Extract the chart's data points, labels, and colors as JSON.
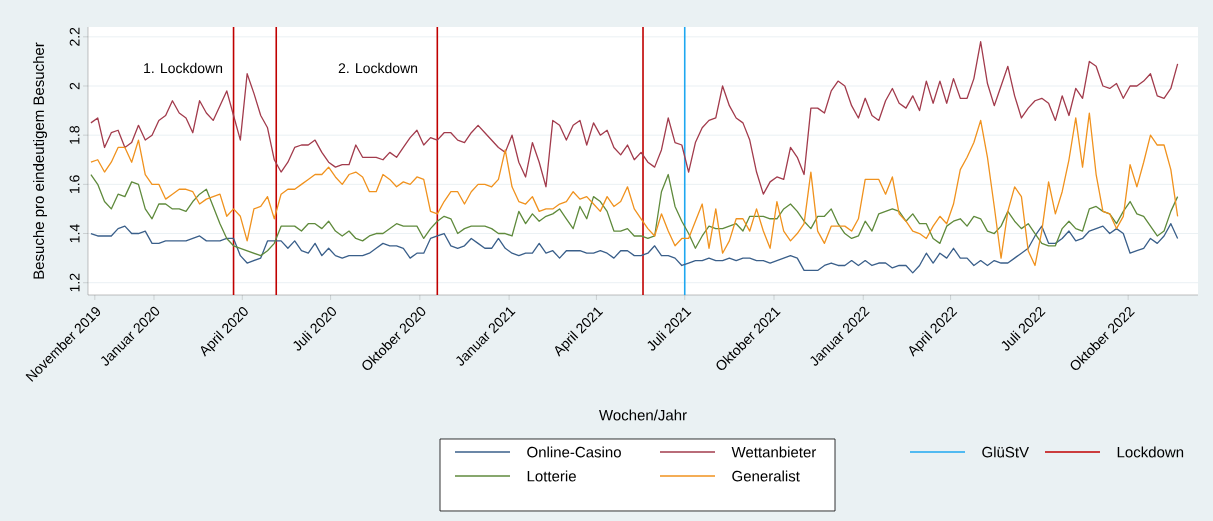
{
  "chart_data": {
    "type": "line",
    "xlabel": "Wochen/Jahr",
    "ylabel": "Besuche pro eindeutigem Besucher",
    "x": [
      "2019-10-28",
      "2019-11-04",
      "2019-11-11",
      "2019-11-18",
      "2019-11-25",
      "2019-12-02",
      "2019-12-09",
      "2019-12-16",
      "2019-12-23",
      "2019-12-30",
      "2020-01-06",
      "2020-01-13",
      "2020-01-20",
      "2020-01-27",
      "2020-02-03",
      "2020-02-10",
      "2020-02-17",
      "2020-02-24",
      "2020-03-02",
      "2020-03-09",
      "2020-03-16",
      "2020-03-23",
      "2020-03-30",
      "2020-04-06",
      "2020-04-13",
      "2020-04-20",
      "2020-04-27",
      "2020-05-04",
      "2020-05-11",
      "2020-05-18",
      "2020-05-25",
      "2020-06-01",
      "2020-06-08",
      "2020-06-15",
      "2020-06-22",
      "2020-06-29",
      "2020-07-06",
      "2020-07-13",
      "2020-07-20",
      "2020-07-27",
      "2020-08-03",
      "2020-08-10",
      "2020-08-17",
      "2020-08-24",
      "2020-08-31",
      "2020-09-07",
      "2020-09-14",
      "2020-09-21",
      "2020-09-28",
      "2020-10-05",
      "2020-10-12",
      "2020-10-19",
      "2020-10-26",
      "2020-11-02",
      "2020-11-09",
      "2020-11-16",
      "2020-11-23",
      "2020-11-30",
      "2020-12-07",
      "2020-12-14",
      "2020-12-21",
      "2020-12-28",
      "2021-01-04",
      "2021-01-11",
      "2021-01-18",
      "2021-01-25",
      "2021-02-01",
      "2021-02-08",
      "2021-02-15",
      "2021-02-22",
      "2021-03-01",
      "2021-03-08",
      "2021-03-15",
      "2021-03-22",
      "2021-03-29",
      "2021-04-05",
      "2021-04-12",
      "2021-04-19",
      "2021-04-26",
      "2021-05-03",
      "2021-05-10",
      "2021-05-17",
      "2021-05-24",
      "2021-05-31",
      "2021-06-07",
      "2021-06-14",
      "2021-06-21",
      "2021-06-28",
      "2021-07-05",
      "2021-07-12",
      "2021-07-19",
      "2021-07-26",
      "2021-08-02",
      "2021-08-09",
      "2021-08-16",
      "2021-08-23",
      "2021-08-30",
      "2021-09-06",
      "2021-09-13",
      "2021-09-20",
      "2021-09-27",
      "2021-10-04",
      "2021-10-11",
      "2021-10-18",
      "2021-10-25",
      "2021-11-01",
      "2021-11-08",
      "2021-11-15",
      "2021-11-22",
      "2021-11-29",
      "2021-12-06",
      "2021-12-13",
      "2021-12-20",
      "2021-12-27",
      "2022-01-03",
      "2022-01-10",
      "2022-01-17",
      "2022-01-24",
      "2022-01-31",
      "2022-02-07",
      "2022-02-14",
      "2022-02-21",
      "2022-02-28",
      "2022-03-07",
      "2022-03-14",
      "2022-03-21",
      "2022-03-28",
      "2022-04-04",
      "2022-04-11",
      "2022-04-18",
      "2022-04-25",
      "2022-05-02",
      "2022-05-09",
      "2022-05-16",
      "2022-05-23",
      "2022-05-30",
      "2022-06-06",
      "2022-06-13",
      "2022-06-20",
      "2022-06-27",
      "2022-07-04",
      "2022-07-11",
      "2022-07-18",
      "2022-07-25",
      "2022-08-01",
      "2022-08-08",
      "2022-08-15",
      "2022-08-22",
      "2022-08-29",
      "2022-09-05",
      "2022-09-12",
      "2022-09-19",
      "2022-09-26",
      "2022-10-03",
      "2022-10-10",
      "2022-10-17",
      "2022-10-24",
      "2022-10-31",
      "2022-11-07",
      "2022-11-14",
      "2022-11-21"
    ],
    "series": [
      {
        "name": "Online-Casino",
        "color": "#3a5f8a",
        "values": [
          1.4,
          1.39,
          1.39,
          1.39,
          1.42,
          1.43,
          1.4,
          1.4,
          1.41,
          1.36,
          1.36,
          1.37,
          1.37,
          1.37,
          1.37,
          1.38,
          1.39,
          1.37,
          1.37,
          1.37,
          1.38,
          1.38,
          1.31,
          1.28,
          1.29,
          1.3,
          1.37,
          1.37,
          1.37,
          1.34,
          1.37,
          1.33,
          1.32,
          1.36,
          1.31,
          1.34,
          1.31,
          1.3,
          1.31,
          1.31,
          1.31,
          1.32,
          1.34,
          1.36,
          1.35,
          1.35,
          1.34,
          1.3,
          1.32,
          1.32,
          1.38,
          1.39,
          1.4,
          1.35,
          1.34,
          1.35,
          1.38,
          1.36,
          1.34,
          1.34,
          1.38,
          1.34,
          1.32,
          1.31,
          1.32,
          1.32,
          1.36,
          1.32,
          1.33,
          1.3,
          1.33,
          1.33,
          1.33,
          1.32,
          1.32,
          1.33,
          1.32,
          1.3,
          1.33,
          1.33,
          1.31,
          1.31,
          1.32,
          1.35,
          1.31,
          1.31,
          1.3,
          1.27,
          1.28,
          1.29,
          1.29,
          1.3,
          1.29,
          1.29,
          1.3,
          1.29,
          1.3,
          1.3,
          1.29,
          1.29,
          1.28,
          1.29,
          1.3,
          1.31,
          1.3,
          1.25,
          1.25,
          1.25,
          1.27,
          1.28,
          1.27,
          1.27,
          1.29,
          1.27,
          1.29,
          1.27,
          1.28,
          1.28,
          1.26,
          1.27,
          1.27,
          1.24,
          1.27,
          1.32,
          1.28,
          1.32,
          1.3,
          1.34,
          1.3,
          1.3,
          1.27,
          1.29,
          1.27,
          1.29,
          1.28,
          1.28,
          1.3,
          1.32,
          1.34,
          1.39,
          1.43,
          1.36,
          1.36,
          1.38,
          1.41,
          1.37,
          1.38,
          1.41,
          1.42,
          1.43,
          1.4,
          1.42,
          1.4,
          1.32,
          1.33,
          1.34,
          1.38,
          1.36,
          1.39,
          1.44,
          1.38
        ]
      },
      {
        "name": "Wettanbieter",
        "color": "#a23b4c",
        "values": [
          1.85,
          1.87,
          1.75,
          1.81,
          1.82,
          1.75,
          1.77,
          1.84,
          1.78,
          1.8,
          1.86,
          1.88,
          1.94,
          1.89,
          1.87,
          1.81,
          1.94,
          1.89,
          1.86,
          1.92,
          1.98,
          1.88,
          1.78,
          2.05,
          1.97,
          1.88,
          1.83,
          1.7,
          1.65,
          1.69,
          1.75,
          1.76,
          1.76,
          1.78,
          1.73,
          1.69,
          1.67,
          1.68,
          1.68,
          1.76,
          1.71,
          1.71,
          1.71,
          1.7,
          1.73,
          1.71,
          1.75,
          1.79,
          1.82,
          1.76,
          1.79,
          1.78,
          1.81,
          1.81,
          1.78,
          1.77,
          1.81,
          1.84,
          1.81,
          1.78,
          1.75,
          1.73,
          1.8,
          1.69,
          1.63,
          1.77,
          1.69,
          1.59,
          1.86,
          1.84,
          1.78,
          1.84,
          1.86,
          1.76,
          1.85,
          1.8,
          1.82,
          1.75,
          1.72,
          1.76,
          1.7,
          1.73,
          1.69,
          1.67,
          1.74,
          1.87,
          1.77,
          1.76,
          1.65,
          1.77,
          1.83,
          1.86,
          1.87,
          2.0,
          1.92,
          1.87,
          1.85,
          1.78,
          1.65,
          1.56,
          1.61,
          1.63,
          1.62,
          1.75,
          1.71,
          1.64,
          1.91,
          1.91,
          1.89,
          1.98,
          2.02,
          2.0,
          1.92,
          1.87,
          1.95,
          1.88,
          1.86,
          1.94,
          1.99,
          1.93,
          1.91,
          1.96,
          1.9,
          2.02,
          1.93,
          2.02,
          1.93,
          2.03,
          1.95,
          1.95,
          2.03,
          2.18,
          2.01,
          1.92,
          2.0,
          2.08,
          1.96,
          1.87,
          1.91,
          1.94,
          1.95,
          1.93,
          1.86,
          1.96,
          1.88,
          1.99,
          1.95,
          2.1,
          2.08,
          2.0,
          1.99,
          2.01,
          1.95,
          2.0,
          2.0,
          2.02,
          2.05,
          1.96,
          1.95,
          1.99,
          2.09
        ]
      },
      {
        "name": "Lotterie",
        "color": "#5f8a3c",
        "values": [
          1.64,
          1.6,
          1.53,
          1.5,
          1.56,
          1.55,
          1.61,
          1.6,
          1.5,
          1.46,
          1.52,
          1.52,
          1.5,
          1.5,
          1.49,
          1.53,
          1.56,
          1.58,
          1.51,
          1.44,
          1.38,
          1.35,
          1.34,
          1.33,
          1.32,
          1.31,
          1.33,
          1.36,
          1.43,
          1.43,
          1.43,
          1.41,
          1.44,
          1.44,
          1.42,
          1.45,
          1.41,
          1.39,
          1.41,
          1.38,
          1.37,
          1.39,
          1.4,
          1.4,
          1.42,
          1.44,
          1.43,
          1.43,
          1.43,
          1.38,
          1.42,
          1.45,
          1.47,
          1.46,
          1.4,
          1.42,
          1.43,
          1.43,
          1.43,
          1.42,
          1.4,
          1.4,
          1.39,
          1.49,
          1.44,
          1.48,
          1.45,
          1.47,
          1.48,
          1.5,
          1.46,
          1.42,
          1.51,
          1.46,
          1.55,
          1.53,
          1.49,
          1.41,
          1.41,
          1.42,
          1.39,
          1.39,
          1.38,
          1.39,
          1.57,
          1.64,
          1.51,
          1.45,
          1.4,
          1.34,
          1.39,
          1.43,
          1.42,
          1.42,
          1.43,
          1.44,
          1.41,
          1.47,
          1.47,
          1.47,
          1.46,
          1.46,
          1.5,
          1.52,
          1.49,
          1.45,
          1.42,
          1.47,
          1.47,
          1.5,
          1.44,
          1.4,
          1.38,
          1.39,
          1.45,
          1.41,
          1.48,
          1.49,
          1.5,
          1.49,
          1.45,
          1.48,
          1.44,
          1.44,
          1.38,
          1.36,
          1.43,
          1.45,
          1.46,
          1.43,
          1.47,
          1.46,
          1.41,
          1.4,
          1.43,
          1.49,
          1.45,
          1.42,
          1.44,
          1.4,
          1.36,
          1.35,
          1.35,
          1.42,
          1.45,
          1.42,
          1.41,
          1.5,
          1.51,
          1.49,
          1.48,
          1.44,
          1.49,
          1.53,
          1.48,
          1.47,
          1.43,
          1.39,
          1.41,
          1.49,
          1.55
        ]
      },
      {
        "name": "Generalist",
        "color": "#f0921e",
        "values": [
          1.69,
          1.7,
          1.65,
          1.69,
          1.75,
          1.75,
          1.69,
          1.78,
          1.64,
          1.6,
          1.6,
          1.54,
          1.56,
          1.58,
          1.58,
          1.57,
          1.52,
          1.54,
          1.55,
          1.56,
          1.47,
          1.5,
          1.47,
          1.37,
          1.5,
          1.51,
          1.55,
          1.46,
          1.56,
          1.58,
          1.58,
          1.6,
          1.62,
          1.64,
          1.64,
          1.67,
          1.63,
          1.6,
          1.64,
          1.65,
          1.63,
          1.57,
          1.57,
          1.64,
          1.62,
          1.59,
          1.61,
          1.6,
          1.63,
          1.62,
          1.49,
          1.48,
          1.53,
          1.57,
          1.57,
          1.52,
          1.57,
          1.6,
          1.6,
          1.59,
          1.62,
          1.74,
          1.59,
          1.53,
          1.52,
          1.55,
          1.49,
          1.5,
          1.5,
          1.52,
          1.53,
          1.57,
          1.54,
          1.55,
          1.52,
          1.49,
          1.55,
          1.51,
          1.53,
          1.59,
          1.5,
          1.46,
          1.42,
          1.39,
          1.48,
          1.41,
          1.35,
          1.38,
          1.38,
          1.45,
          1.52,
          1.34,
          1.5,
          1.32,
          1.37,
          1.46,
          1.46,
          1.41,
          1.5,
          1.41,
          1.34,
          1.53,
          1.41,
          1.37,
          1.4,
          1.44,
          1.65,
          1.41,
          1.36,
          1.43,
          1.43,
          1.43,
          1.41,
          1.46,
          1.62,
          1.62,
          1.62,
          1.56,
          1.63,
          1.48,
          1.45,
          1.41,
          1.4,
          1.38,
          1.43,
          1.47,
          1.44,
          1.52,
          1.66,
          1.71,
          1.77,
          1.86,
          1.71,
          1.51,
          1.3,
          1.49,
          1.59,
          1.55,
          1.33,
          1.27,
          1.41,
          1.61,
          1.48,
          1.57,
          1.7,
          1.87,
          1.67,
          1.89,
          1.64,
          1.49,
          1.48,
          1.42,
          1.47,
          1.68,
          1.59,
          1.69,
          1.8,
          1.76,
          1.76,
          1.66,
          1.47
        ]
      }
    ],
    "xlim": [
      "2019-10-25",
      "2022-12-12"
    ],
    "ylim": [
      1.15,
      2.24
    ],
    "xticks": [
      {
        "value": "2019-11-01",
        "label": "November 2019"
      },
      {
        "value": "2020-01-01",
        "label": "Januar 2020"
      },
      {
        "value": "2020-04-01",
        "label": "April 2020"
      },
      {
        "value": "2020-07-01",
        "label": "Juli 2020"
      },
      {
        "value": "2020-10-01",
        "label": "Oktober 2020"
      },
      {
        "value": "2021-01-01",
        "label": "Januar 2021"
      },
      {
        "value": "2021-04-01",
        "label": "April 2021"
      },
      {
        "value": "2021-07-01",
        "label": "Juli 2021"
      },
      {
        "value": "2021-10-01",
        "label": "Oktober 2021"
      },
      {
        "value": "2022-01-01",
        "label": "Januar 2022"
      },
      {
        "value": "2022-04-01",
        "label": "April 2022"
      },
      {
        "value": "2022-07-01",
        "label": "Juli 2022"
      },
      {
        "value": "2022-10-01",
        "label": "Oktober 2022"
      }
    ],
    "yticks": [
      1.2,
      1.4,
      1.6,
      1.8,
      2,
      2.2
    ],
    "grid": "y",
    "legend": "bottom",
    "ref_lines": [
      {
        "axis": "x",
        "value": "2021-07-01",
        "label": "GlüStV",
        "color": "#1ea7f0"
      },
      {
        "axis": "x",
        "value": "2020-03-23",
        "label": "Lockdown",
        "color": "#c00000"
      },
      {
        "axis": "x",
        "value": "2020-05-06",
        "color": "#c00000"
      },
      {
        "axis": "x",
        "value": "2020-10-19",
        "color": "#c00000"
      },
      {
        "axis": "x",
        "value": "2021-05-19",
        "color": "#c00000"
      }
    ],
    "annotations": [
      "1. Lockdown",
      "2. Lockdown"
    ]
  }
}
